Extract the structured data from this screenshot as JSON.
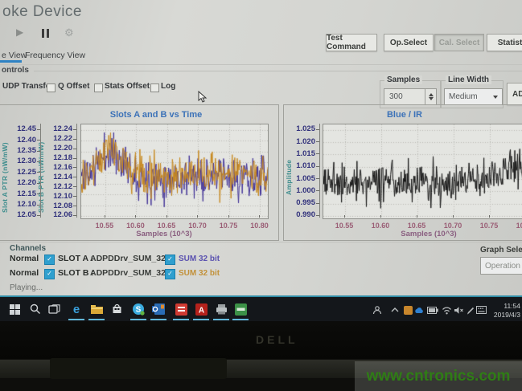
{
  "window_title": "oke Device",
  "top_buttons": {
    "test_command": "Test Command",
    "op_select": "Op.Select",
    "cal_select": "Cal. Select",
    "statistics": "Statistics"
  },
  "tabs": {
    "time_view": "e View",
    "frequency_view": "Frequency View"
  },
  "controls": {
    "group_label": "ontrols",
    "udp_transfer": "UDP Transfer",
    "q_offset": "Q Offset",
    "stats_offset": "Stats Offset",
    "log": "Log",
    "samples_label": "Samples",
    "samples_value": "300",
    "line_width_label": "Line Width",
    "line_width_value": "Medium",
    "adp_button_label": "ADP"
  },
  "chart_data": [
    {
      "type": "line",
      "title": "Slots A and B vs Time",
      "xlabel": "Samples (10^3)",
      "xticks": [
        "10.55",
        "10.60",
        "10.65",
        "10.70",
        "10.75",
        "10.80"
      ],
      "xlim": [
        10.51,
        10.81
      ],
      "grid": "dotted",
      "axes": [
        {
          "label": "Slot A PTR (nW/mW)",
          "ticks": [
            "12.45",
            "12.40",
            "12.35",
            "12.30",
            "12.25",
            "12.20",
            "12.15",
            "12.10",
            "12.05"
          ],
          "lim": [
            12.05,
            12.45
          ]
        },
        {
          "label": "Slot B PTR (nW/mW)",
          "ticks": [
            "12.24",
            "12.22",
            "12.20",
            "12.18",
            "12.16",
            "12.14",
            "12.12",
            "12.10",
            "12.08",
            "12.06"
          ],
          "lim": [
            12.06,
            12.24
          ]
        }
      ],
      "series": [
        {
          "name": "Slot A",
          "color": "#3f2f96",
          "axis": 0,
          "n": 300,
          "mean": 12.23,
          "std": 0.047,
          "peak_x": 0.16,
          "peak_amp": 0.12,
          "seed": 11
        },
        {
          "name": "Slot B",
          "color": "#c6871c",
          "axis": 1,
          "n": 300,
          "mean": 12.145,
          "std": 0.021,
          "peak_x": 0.16,
          "peak_amp": 0.05,
          "seed": 29
        }
      ]
    },
    {
      "type": "line",
      "title": "Blue / IR",
      "ylabel": "Amplitude",
      "xlabel": "Samples (10^3)",
      "xticks": [
        "10.55",
        "10.60",
        "10.65",
        "10.70",
        "10.75",
        "10.80"
      ],
      "xlim": [
        10.52,
        10.81
      ],
      "yticks": [
        "1.025",
        "1.020",
        "1.015",
        "1.010",
        "1.005",
        "1.000",
        "0.995",
        "0.990"
      ],
      "ylim": [
        0.99,
        1.025
      ],
      "grid": "dotted",
      "series": [
        {
          "name": "Blue / IR",
          "color": "#161616",
          "n": 380,
          "mean": 1.004,
          "std": 0.0042,
          "peak_x": 0.92,
          "peak_amp": 0.006,
          "seed": 5
        }
      ]
    }
  ],
  "channels": {
    "section_label": "Channels",
    "rows": [
      {
        "mode": "Normal",
        "slot": "SLOT A :",
        "driver": "ADPDDrv_SUM_32",
        "bits": "SUM 32 bit",
        "bits_color": "#5b52b0",
        "checked": true
      },
      {
        "mode": "Normal",
        "slot": "SLOT B :",
        "driver": "ADPDDrv_SUM_32",
        "bits": "SUM 32 bit",
        "bits_color": "#c2913a",
        "checked": true
      }
    ]
  },
  "graph_selection": {
    "label": "Graph Selection",
    "value": "Operation"
  },
  "status": "Playing...",
  "taskbar": {
    "clock_time": "11:54",
    "clock_date": "2019/4/3",
    "icons": [
      "start",
      "search",
      "task-view",
      "edge",
      "file-explorer",
      "store",
      "skype",
      "outlook",
      "red-app",
      "acrobat",
      "printer-app",
      "green-app"
    ],
    "tray_icons": [
      "people",
      "chevron-up",
      "tray-app",
      "onedrive",
      "battery",
      "wifi",
      "speaker",
      "pen",
      "touch-keyboard"
    ]
  },
  "brand": "DELL",
  "watermark": "www.cntronics.com",
  "accent_colors": {
    "tab_underline": "#2e82c4",
    "taskbar_top": "#2f8ca6",
    "checkbox_checked": "#2f9fce",
    "chart_title": "#3c72b8",
    "axis_label": "#3f8e8e",
    "tick_text": "#32327c",
    "xtick_text": "#9a5d75",
    "watermark_green": "#2f7d15"
  }
}
